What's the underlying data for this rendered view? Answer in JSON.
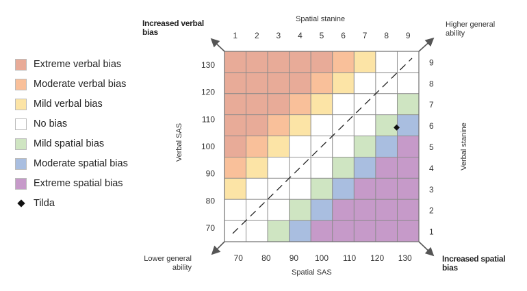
{
  "chart_data": {
    "type": "heatmap",
    "title": "",
    "top_axis_label": "Spatial stanine",
    "bottom_axis_label": "Spatial SAS",
    "left_axis_label": "Verbal SAS",
    "right_axis_label": "Verbal stanine",
    "top_ticks": [
      "1",
      "2",
      "3",
      "4",
      "5",
      "6",
      "7",
      "8",
      "9"
    ],
    "bottom_ticks": [
      "70",
      "80",
      "90",
      "100",
      "110",
      "120",
      "130"
    ],
    "left_ticks": [
      "130",
      "120",
      "110",
      "100",
      "90",
      "80",
      "70"
    ],
    "right_ticks": [
      "9",
      "8",
      "7",
      "6",
      "5",
      "4",
      "3",
      "2",
      "1"
    ],
    "corner_labels": {
      "top_left": "Increased verbal bias",
      "top_right": "Higher general ability",
      "bottom_left": "Lower general ability",
      "bottom_right": "Increased spatial bias"
    },
    "categories": [
      {
        "key": "EV",
        "name": "Extreme verbal bias",
        "color": "#E8AB98"
      },
      {
        "key": "MV",
        "name": "Moderate verbal bias",
        "color": "#F9C09A"
      },
      {
        "key": "LV",
        "name": "Mild verbal bias",
        "color": "#FCE4A6"
      },
      {
        "key": "NB",
        "name": "No bias",
        "color": "#FFFFFF"
      },
      {
        "key": "LS",
        "name": "Mild spatial bias",
        "color": "#CFE5C2"
      },
      {
        "key": "MS",
        "name": "Moderate spatial bias",
        "color": "#A9BEE0"
      },
      {
        "key": "ES",
        "name": "Extreme spatial bias",
        "color": "#C69AC9"
      }
    ],
    "grid_rows_top_to_bottom": [
      [
        "EV",
        "EV",
        "EV",
        "EV",
        "EV",
        "MV",
        "LV",
        "NB",
        "NB"
      ],
      [
        "EV",
        "EV",
        "EV",
        "EV",
        "MV",
        "LV",
        "NB",
        "NB",
        "NB"
      ],
      [
        "EV",
        "EV",
        "EV",
        "MV",
        "LV",
        "NB",
        "NB",
        "NB",
        "LS"
      ],
      [
        "EV",
        "EV",
        "MV",
        "LV",
        "NB",
        "NB",
        "NB",
        "LS",
        "MS"
      ],
      [
        "EV",
        "MV",
        "LV",
        "NB",
        "NB",
        "NB",
        "LS",
        "MS",
        "ES"
      ],
      [
        "MV",
        "LV",
        "NB",
        "NB",
        "NB",
        "LS",
        "MS",
        "ES",
        "ES"
      ],
      [
        "LV",
        "NB",
        "NB",
        "NB",
        "LS",
        "MS",
        "ES",
        "ES",
        "ES"
      ],
      [
        "NB",
        "NB",
        "NB",
        "LS",
        "MS",
        "ES",
        "ES",
        "ES",
        "ES"
      ],
      [
        "NB",
        "NB",
        "LS",
        "MS",
        "ES",
        "ES",
        "ES",
        "ES",
        "ES"
      ]
    ],
    "marker": {
      "name": "Tilda",
      "spatial_sas": 127,
      "verbal_sas": 107
    },
    "sas_range": [
      65,
      135
    ],
    "diagonal": "dashed"
  }
}
